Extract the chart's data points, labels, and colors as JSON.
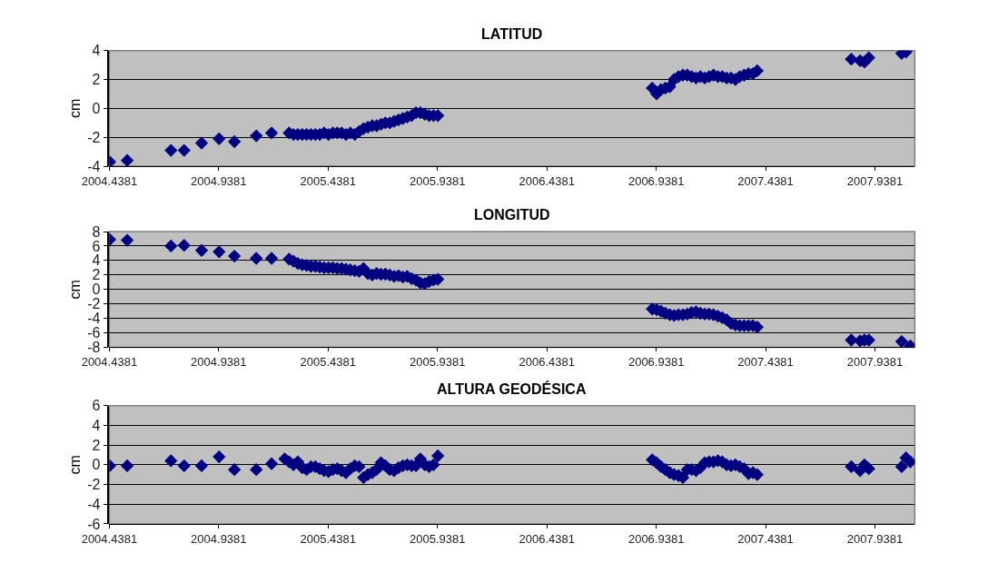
{
  "chart_data": [
    {
      "type": "scatter",
      "title": "LATITUD",
      "ylabel": "cm",
      "marker": "diamond",
      "grid": "y",
      "x": [
        2004.44,
        2004.52,
        2004.72,
        2004.78,
        2004.86,
        2004.94,
        2005.01,
        2005.11,
        2005.18,
        2005.26,
        2005.28,
        2005.3,
        2005.32,
        2005.34,
        2005.36,
        2005.38,
        2005.4,
        2005.42,
        2005.44,
        2005.46,
        2005.48,
        2005.5,
        2005.52,
        2005.54,
        2005.56,
        2005.58,
        2005.6,
        2005.62,
        2005.64,
        2005.66,
        2005.68,
        2005.7,
        2005.72,
        2005.74,
        2005.76,
        2005.78,
        2005.8,
        2005.82,
        2005.84,
        2005.86,
        2005.88,
        2005.9,
        2005.92,
        2005.94,
        2006.92,
        2006.94,
        2006.96,
        2006.98,
        2007.0,
        2007.02,
        2007.04,
        2007.06,
        2007.08,
        2007.1,
        2007.12,
        2007.14,
        2007.16,
        2007.18,
        2007.2,
        2007.22,
        2007.24,
        2007.26,
        2007.28,
        2007.3,
        2007.32,
        2007.34,
        2007.36,
        2007.38,
        2007.4,
        2007.83,
        2007.87,
        2007.89,
        2007.91,
        2008.06,
        2008.08
      ],
      "series": [
        {
          "color": "#000080",
          "values": [
            -3.7,
            -3.6,
            -2.9,
            -2.9,
            -2.4,
            -2.1,
            -2.3,
            -1.9,
            -1.7,
            -1.7,
            -1.8,
            -1.8,
            -1.8,
            -1.8,
            -1.8,
            -1.8,
            -1.8,
            -1.7,
            -1.8,
            -1.7,
            -1.7,
            -1.7,
            -1.8,
            -1.7,
            -1.8,
            -1.6,
            -1.4,
            -1.3,
            -1.2,
            -1.2,
            -1.1,
            -1.0,
            -1.0,
            -0.9,
            -0.8,
            -0.7,
            -0.6,
            -0.5,
            -0.3,
            -0.3,
            -0.4,
            -0.5,
            -0.5,
            -0.5,
            1.4,
            1.0,
            1.3,
            1.4,
            1.5,
            2.0,
            2.2,
            2.3,
            2.3,
            2.2,
            2.1,
            2.2,
            2.1,
            2.2,
            2.3,
            2.2,
            2.2,
            2.1,
            2.1,
            2.0,
            2.2,
            2.3,
            2.4,
            2.4,
            2.6,
            3.4,
            3.3,
            3.2,
            3.5,
            3.8,
            3.9
          ]
        }
      ],
      "xlim": [
        2004.4381,
        2008.12
      ],
      "xticks": [
        2004.4381,
        2004.9381,
        2005.4381,
        2005.9381,
        2006.4381,
        2006.9381,
        2007.4381,
        2007.9381
      ],
      "ylim": [
        -4,
        4
      ],
      "yticks": [
        -4,
        -2,
        0,
        2,
        4
      ]
    },
    {
      "type": "scatter",
      "title": "LONGITUD",
      "ylabel": "cm",
      "marker": "diamond",
      "grid": "y",
      "x": [
        2004.44,
        2004.52,
        2004.72,
        2004.78,
        2004.86,
        2004.94,
        2005.01,
        2005.11,
        2005.18,
        2005.26,
        2005.28,
        2005.3,
        2005.32,
        2005.34,
        2005.36,
        2005.38,
        2005.4,
        2005.42,
        2005.44,
        2005.46,
        2005.48,
        2005.5,
        2005.52,
        2005.54,
        2005.56,
        2005.58,
        2005.6,
        2005.62,
        2005.64,
        2005.66,
        2005.68,
        2005.7,
        2005.72,
        2005.74,
        2005.76,
        2005.78,
        2005.8,
        2005.82,
        2005.84,
        2005.86,
        2005.88,
        2005.9,
        2005.92,
        2005.94,
        2006.92,
        2006.94,
        2006.96,
        2006.98,
        2007.0,
        2007.02,
        2007.04,
        2007.06,
        2007.08,
        2007.1,
        2007.12,
        2007.14,
        2007.16,
        2007.18,
        2007.2,
        2007.22,
        2007.24,
        2007.26,
        2007.28,
        2007.3,
        2007.32,
        2007.34,
        2007.36,
        2007.38,
        2007.4,
        2007.83,
        2007.87,
        2007.89,
        2007.91,
        2008.06,
        2008.1
      ],
      "series": [
        {
          "color": "#000080",
          "values": [
            6.9,
            6.8,
            6.0,
            6.1,
            5.4,
            5.2,
            4.6,
            4.3,
            4.3,
            4.2,
            3.9,
            3.6,
            3.4,
            3.3,
            3.2,
            3.2,
            3.1,
            3.0,
            3.0,
            3.0,
            2.9,
            2.9,
            2.8,
            2.7,
            2.6,
            2.5,
            2.9,
            2.2,
            2.0,
            2.2,
            2.1,
            2.1,
            2.0,
            1.8,
            1.9,
            1.7,
            1.8,
            1.5,
            1.3,
            0.9,
            0.8,
            1.1,
            1.3,
            1.4,
            -2.7,
            -2.8,
            -3.0,
            -3.3,
            -3.5,
            -3.6,
            -3.5,
            -3.5,
            -3.4,
            -3.2,
            -3.1,
            -3.3,
            -3.4,
            -3.4,
            -3.5,
            -3.7,
            -3.9,
            -4.2,
            -4.7,
            -4.9,
            -5.0,
            -5.0,
            -5.0,
            -5.0,
            -5.2,
            -7.0,
            -7.1,
            -7.0,
            -7.0,
            -7.2,
            -7.8
          ]
        }
      ],
      "xlim": [
        2004.4381,
        2008.12
      ],
      "xticks": [
        2004.4381,
        2004.9381,
        2005.4381,
        2005.9381,
        2006.4381,
        2006.9381,
        2007.4381,
        2007.9381
      ],
      "ylim": [
        -8,
        8
      ],
      "yticks": [
        -8,
        -6,
        -4,
        -2,
        0,
        2,
        4,
        6,
        8
      ]
    },
    {
      "type": "scatter",
      "title": "ALTURA GEODÉSICA",
      "ylabel": "cm",
      "marker": "diamond",
      "grid": "y",
      "x": [
        2004.44,
        2004.52,
        2004.72,
        2004.78,
        2004.86,
        2004.94,
        2005.01,
        2005.11,
        2005.18,
        2005.24,
        2005.26,
        2005.28,
        2005.3,
        2005.32,
        2005.34,
        2005.36,
        2005.38,
        2005.4,
        2005.42,
        2005.44,
        2005.46,
        2005.48,
        2005.5,
        2005.52,
        2005.54,
        2005.56,
        2005.58,
        2005.6,
        2005.62,
        2005.64,
        2005.66,
        2005.68,
        2005.7,
        2005.72,
        2005.74,
        2005.76,
        2005.78,
        2005.8,
        2005.82,
        2005.84,
        2005.86,
        2005.88,
        2005.9,
        2005.92,
        2005.94,
        2006.92,
        2006.94,
        2006.96,
        2006.98,
        2007.0,
        2007.02,
        2007.04,
        2007.06,
        2007.08,
        2007.1,
        2007.12,
        2007.14,
        2007.16,
        2007.18,
        2007.2,
        2007.22,
        2007.24,
        2007.26,
        2007.28,
        2007.3,
        2007.32,
        2007.34,
        2007.36,
        2007.38,
        2007.4,
        2007.83,
        2007.87,
        2007.89,
        2007.91,
        2008.06,
        2008.08,
        2008.1
      ],
      "series": [
        {
          "color": "#000080",
          "values": [
            -0.1,
            -0.1,
            0.4,
            -0.1,
            -0.1,
            0.8,
            -0.5,
            -0.5,
            0.1,
            0.6,
            0.3,
            0.0,
            0.3,
            -0.3,
            -0.5,
            -0.2,
            -0.2,
            -0.4,
            -0.6,
            -0.7,
            -0.5,
            -0.4,
            -0.6,
            -0.8,
            -0.4,
            -0.1,
            -0.2,
            -1.3,
            -1.0,
            -0.8,
            -0.5,
            0.2,
            -0.1,
            -0.5,
            -0.6,
            -0.3,
            -0.1,
            0.0,
            -0.1,
            -0.1,
            0.6,
            0.0,
            -0.2,
            0.0,
            0.9,
            0.5,
            0.2,
            -0.2,
            -0.5,
            -0.8,
            -1.0,
            -1.1,
            -1.3,
            -0.5,
            -0.5,
            -0.6,
            -0.3,
            0.2,
            0.3,
            0.3,
            0.4,
            0.3,
            0.0,
            -0.1,
            0.0,
            -0.2,
            -0.4,
            -0.9,
            -0.8,
            -1.0,
            -0.2,
            -0.6,
            0.0,
            -0.4,
            -0.2,
            0.7,
            0.3
          ]
        }
      ],
      "xlim": [
        2004.4381,
        2008.12
      ],
      "xticks": [
        2004.4381,
        2004.9381,
        2005.4381,
        2005.9381,
        2006.4381,
        2006.9381,
        2007.4381,
        2007.9381
      ],
      "ylim": [
        -6,
        6
      ],
      "yticks": [
        -6,
        -4,
        -2,
        0,
        2,
        4,
        6
      ]
    }
  ]
}
